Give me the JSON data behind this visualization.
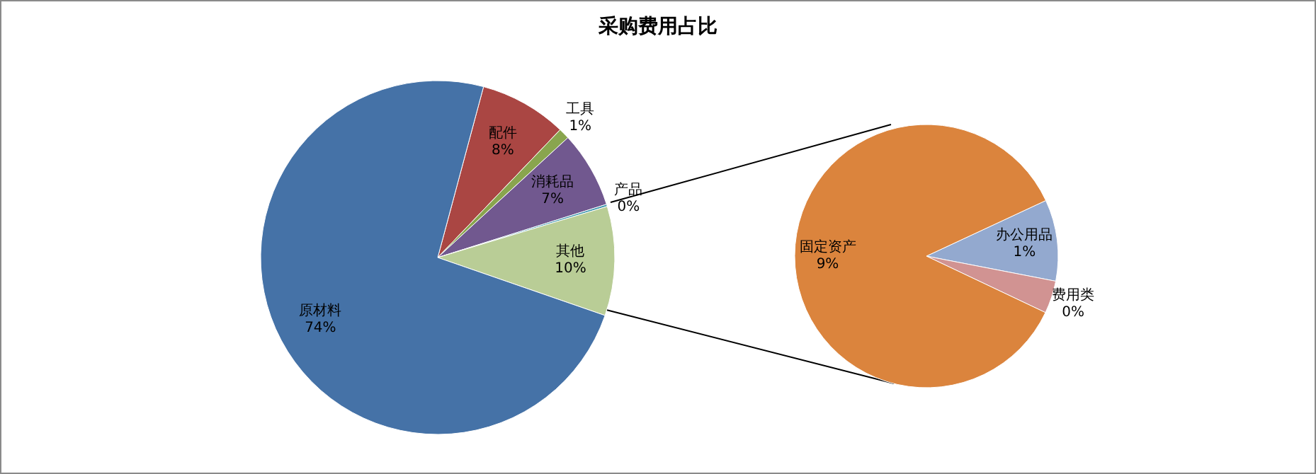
{
  "chart_data": [
    {
      "type": "pie",
      "title": "采购费用占比",
      "categories": [
        "配件",
        "工具",
        "消耗品",
        "产品",
        "其他",
        "原材料"
      ],
      "values": [
        8,
        1,
        7,
        0.2,
        10,
        74
      ],
      "colors": [
        "#aa4643",
        "#89a54e",
        "#71588f",
        "#4198af",
        "#b9cd96",
        "#4572a7"
      ],
      "value_labels": [
        "8%",
        "1%",
        "7%",
        "0%",
        "10%",
        "74%"
      ],
      "legend": false
    },
    {
      "type": "pie",
      "categories": [
        "办公用品",
        "费用类",
        "固定资产"
      ],
      "values": [
        1,
        0.4,
        8.6
      ],
      "colors": [
        "#93a9cf",
        "#d19392",
        "#db843d"
      ],
      "value_labels": [
        "1%",
        "0%",
        "9%"
      ],
      "legend": false
    }
  ]
}
